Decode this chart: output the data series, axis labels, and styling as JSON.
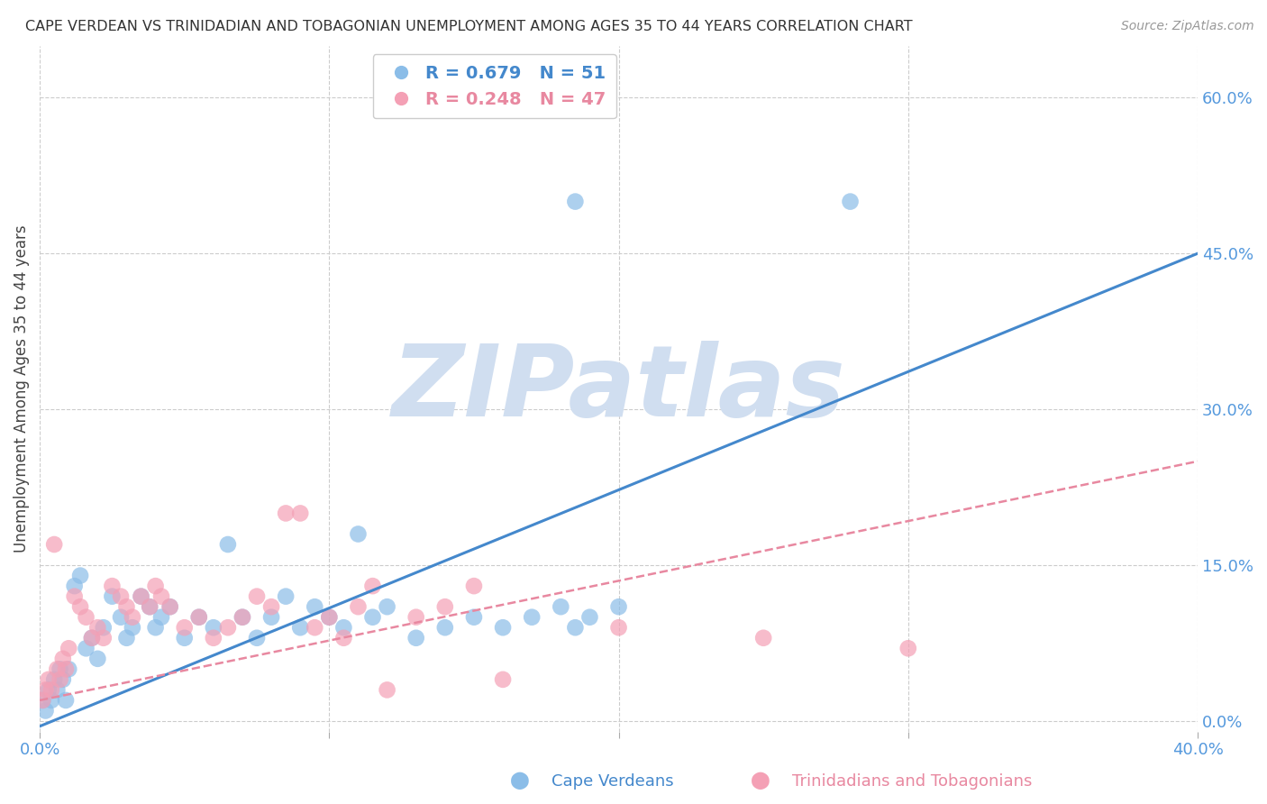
{
  "title": "CAPE VERDEAN VS TRINIDADIAN AND TOBAGONIAN UNEMPLOYMENT AMONG AGES 35 TO 44 YEARS CORRELATION CHART",
  "source": "Source: ZipAtlas.com",
  "ylabel": "Unemployment Among Ages 35 to 44 years",
  "xlim": [
    0.0,
    0.4
  ],
  "ylim": [
    -0.01,
    0.65
  ],
  "yticks": [
    0.0,
    0.15,
    0.3,
    0.45,
    0.6
  ],
  "xticks": [
    0.0,
    0.1,
    0.2,
    0.3,
    0.4
  ],
  "blue_R": 0.679,
  "blue_N": 51,
  "pink_R": 0.248,
  "pink_N": 47,
  "blue_color": "#8BBDE8",
  "pink_color": "#F4A0B5",
  "blue_line_color": "#4488CC",
  "pink_line_color": "#E888A0",
  "blue_legend_color": "#4488CC",
  "pink_legend_color": "#E888A0",
  "watermark": "ZIPatlas",
  "watermark_color": "#D0DEF0",
  "tick_color": "#5599DD",
  "grid_color": "#CCCCCC",
  "background_color": "#FFFFFF",
  "blue_line_x0": 0.0,
  "blue_line_y0": -0.005,
  "blue_line_x1": 0.4,
  "blue_line_y1": 0.45,
  "pink_line_x0": 0.0,
  "pink_line_y0": 0.02,
  "pink_line_x1": 0.4,
  "pink_line_y1": 0.25,
  "blue_scatter_x": [
    0.001,
    0.002,
    0.003,
    0.004,
    0.005,
    0.006,
    0.007,
    0.008,
    0.009,
    0.01,
    0.012,
    0.014,
    0.016,
    0.018,
    0.02,
    0.022,
    0.025,
    0.028,
    0.03,
    0.032,
    0.035,
    0.038,
    0.04,
    0.042,
    0.045,
    0.05,
    0.055,
    0.06,
    0.065,
    0.07,
    0.075,
    0.08,
    0.085,
    0.09,
    0.095,
    0.1,
    0.105,
    0.11,
    0.115,
    0.12,
    0.13,
    0.14,
    0.15,
    0.16,
    0.17,
    0.18,
    0.185,
    0.19,
    0.2,
    0.185,
    0.28
  ],
  "blue_scatter_y": [
    0.02,
    0.01,
    0.03,
    0.02,
    0.04,
    0.03,
    0.05,
    0.04,
    0.02,
    0.05,
    0.13,
    0.14,
    0.07,
    0.08,
    0.06,
    0.09,
    0.12,
    0.1,
    0.08,
    0.09,
    0.12,
    0.11,
    0.09,
    0.1,
    0.11,
    0.08,
    0.1,
    0.09,
    0.17,
    0.1,
    0.08,
    0.1,
    0.12,
    0.09,
    0.11,
    0.1,
    0.09,
    0.18,
    0.1,
    0.11,
    0.08,
    0.09,
    0.1,
    0.09,
    0.1,
    0.11,
    0.09,
    0.1,
    0.11,
    0.5,
    0.5
  ],
  "pink_scatter_x": [
    0.001,
    0.002,
    0.003,
    0.004,
    0.005,
    0.006,
    0.007,
    0.008,
    0.009,
    0.01,
    0.012,
    0.014,
    0.016,
    0.018,
    0.02,
    0.022,
    0.025,
    0.028,
    0.03,
    0.032,
    0.035,
    0.038,
    0.04,
    0.042,
    0.045,
    0.05,
    0.055,
    0.06,
    0.065,
    0.07,
    0.075,
    0.08,
    0.085,
    0.09,
    0.095,
    0.1,
    0.105,
    0.11,
    0.115,
    0.12,
    0.13,
    0.15,
    0.16,
    0.2,
    0.25,
    0.3,
    0.14
  ],
  "pink_scatter_y": [
    0.02,
    0.03,
    0.04,
    0.03,
    0.17,
    0.05,
    0.04,
    0.06,
    0.05,
    0.07,
    0.12,
    0.11,
    0.1,
    0.08,
    0.09,
    0.08,
    0.13,
    0.12,
    0.11,
    0.1,
    0.12,
    0.11,
    0.13,
    0.12,
    0.11,
    0.09,
    0.1,
    0.08,
    0.09,
    0.1,
    0.12,
    0.11,
    0.2,
    0.2,
    0.09,
    0.1,
    0.08,
    0.11,
    0.13,
    0.03,
    0.1,
    0.13,
    0.04,
    0.09,
    0.08,
    0.07,
    0.11
  ],
  "caption_blue": "Cape Verdeans",
  "caption_pink": "Trinidadians and Tobagonians"
}
